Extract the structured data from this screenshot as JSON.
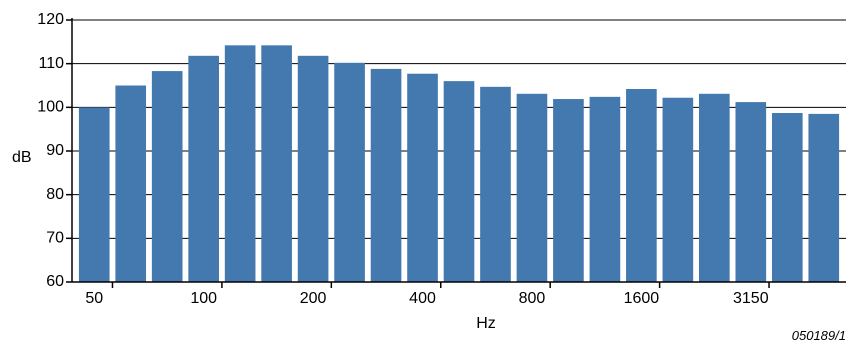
{
  "chart_data": {
    "type": "bar",
    "ylabel": "dB",
    "xlabel": "Hz",
    "ylim": [
      60,
      120
    ],
    "yticks": [
      60,
      70,
      80,
      90,
      100,
      110,
      120
    ],
    "grid": true,
    "bar_color": "#4379AE",
    "x_tick_labels": [
      "50",
      "100",
      "200",
      "400",
      "800",
      "1600",
      "3150"
    ],
    "values": [
      100,
      105,
      108.3,
      111.8,
      114.2,
      114.2,
      111.8,
      110.2,
      108.8,
      107.7,
      106,
      104.7,
      103.1,
      101.9,
      102.4,
      104.2,
      102.2,
      103.1,
      101.2,
      98.7,
      98.5
    ],
    "reference": "050189/1"
  }
}
